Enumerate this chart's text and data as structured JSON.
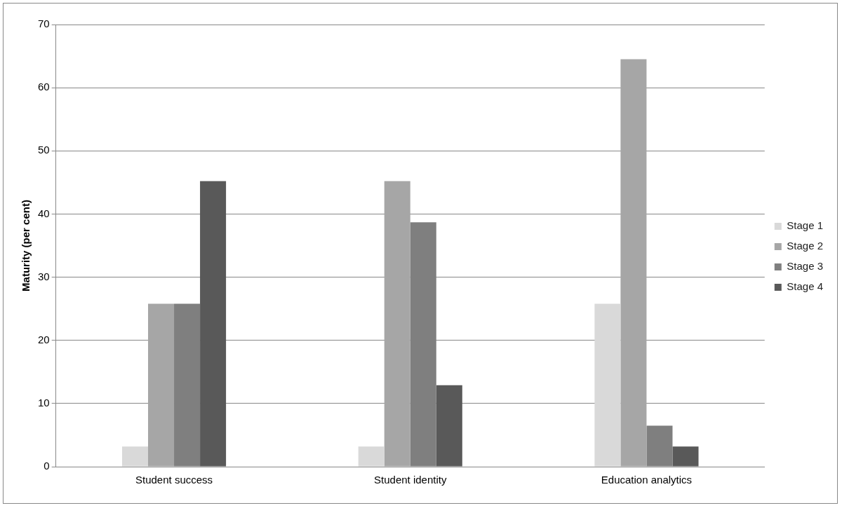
{
  "chart_data": {
    "type": "bar",
    "ylabel": "Maturity (per cent)",
    "categories": [
      "Student success",
      "Student identity",
      "Education analytics"
    ],
    "series": [
      {
        "name": "Stage 1",
        "color": "#d9d9d9",
        "values": [
          3.2,
          3.2,
          25.8
        ]
      },
      {
        "name": "Stage 2",
        "color": "#a6a6a6",
        "values": [
          25.8,
          45.2,
          64.5
        ]
      },
      {
        "name": "Stage 3",
        "color": "#7f7f7f",
        "values": [
          25.8,
          38.7,
          6.5
        ]
      },
      {
        "name": "Stage 4",
        "color": "#595959",
        "values": [
          45.2,
          12.9,
          3.2
        ]
      }
    ],
    "ylim": [
      0,
      70
    ],
    "yticks": [
      0,
      10,
      20,
      30,
      40,
      50,
      60,
      70
    ],
    "grid": "y",
    "legend": "right"
  }
}
